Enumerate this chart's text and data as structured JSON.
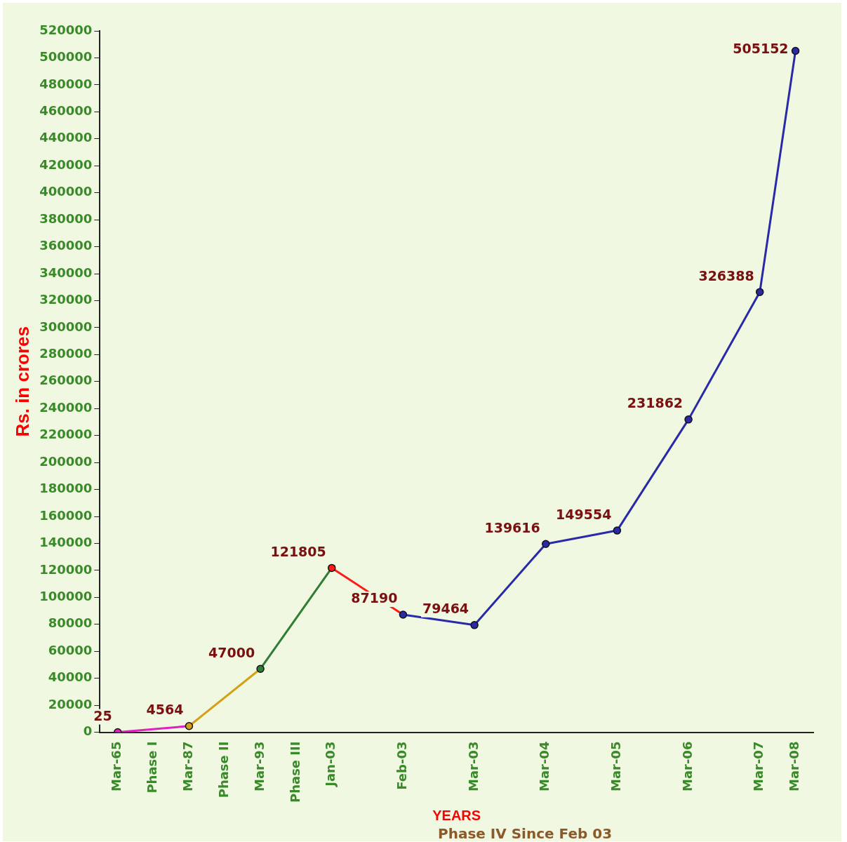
{
  "chart_data": {
    "type": "line",
    "xlabel": "YEARS",
    "ylabel": "Rs. in crores",
    "categories": [
      "Mar-65",
      "Phase I",
      "Mar-87",
      "Phase II",
      "Mar-93",
      "Phase III",
      "Jan-03",
      null,
      "Feb-03",
      null,
      "Mar-03",
      null,
      "Mar-04",
      null,
      "Mar-05",
      null,
      "Mar-06",
      null,
      "Mar-07",
      "Mar-08"
    ],
    "series": [
      {
        "values": [
          25,
          null,
          4564,
          null,
          47000,
          null,
          121805,
          null,
          87190,
          null,
          79464,
          null,
          139616,
          null,
          149554,
          null,
          231862,
          null,
          326388,
          505152
        ],
        "colors": [
          "#e020c0",
          "#e020c0",
          "#d4a017",
          "#d4a017",
          "#2e7d32",
          "#2e7d32",
          "#ff1a1a",
          "#ff1a1a",
          "#2a2aa8",
          "#2a2aa8",
          "#2a2aa8",
          "#2a2aa8",
          "#2a2aa8",
          "#2a2aa8",
          "#2a2aa8",
          "#2a2aa8",
          "#2a2aa8",
          "#2a2aa8",
          "#2a2aa8",
          "#2a2aa8"
        ]
      }
    ],
    "ylim": [
      0,
      520000
    ],
    "yticks": [
      0,
      20000,
      40000,
      60000,
      80000,
      100000,
      120000,
      140000,
      160000,
      180000,
      200000,
      220000,
      240000,
      260000,
      280000,
      300000,
      320000,
      340000,
      360000,
      380000,
      400000,
      420000,
      440000,
      460000,
      480000,
      500000,
      520000
    ],
    "data_labels": true,
    "marker": "circle",
    "grid": false,
    "legend": false,
    "annotations": [
      "Phase IV Since Feb 03"
    ]
  }
}
